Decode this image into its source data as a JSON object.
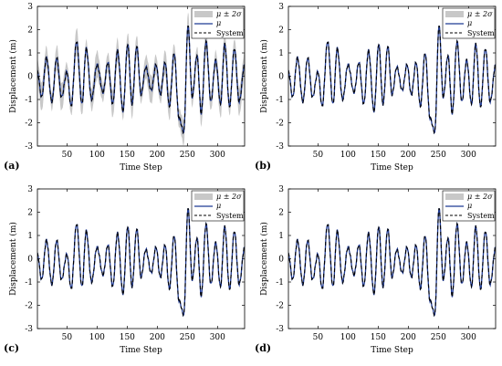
{
  "panels": [
    {
      "label": "(a)",
      "xlabel": "Time Step",
      "ylabel": "Displacement (m)"
    },
    {
      "label": "(b)",
      "xlabel": "Time Step",
      "ylabel": "Displacement (m)"
    },
    {
      "label": "(c)",
      "xlabel": "Time Step",
      "ylabel": "Displacement (m)"
    },
    {
      "label": "(d)",
      "xlabel": "Time Step",
      "ylabel": "Displacement (m)"
    }
  ],
  "legend": {
    "band": "μ ± 2σ",
    "mean": "μ",
    "system": "System"
  },
  "colors": {
    "band": "#c8c8c8",
    "mean": "#1f3a93",
    "system": "#000000"
  },
  "chart_data": [
    {
      "type": "line",
      "xlim": [
        1,
        345
      ],
      "ylim": [
        -3,
        3
      ],
      "x_ticks": [
        50,
        100,
        150,
        200,
        250,
        300
      ],
      "y_ticks": [
        -3,
        -2,
        -1,
        0,
        1,
        2,
        3
      ],
      "grid": false,
      "legend_position": "top-right",
      "band_halfwidth_approx": [
        0.35,
        0.6
      ],
      "keypoints": {
        "x": [
          1,
          8,
          16,
          25,
          33,
          41,
          50,
          57,
          66,
          75,
          82,
          91,
          100,
          110,
          118,
          126,
          134,
          143,
          151,
          158,
          166,
          173,
          181,
          190,
          198,
          205,
          213,
          220,
          228,
          236,
          244,
          251,
          258,
          266,
          273,
          281,
          289,
          297,
          305,
          312,
          320,
          328,
          336,
          345
        ],
        "y": [
          0.2,
          -0.9,
          0.8,
          -1.1,
          0.8,
          -0.9,
          0.2,
          -1.3,
          1.5,
          -1.2,
          1.2,
          -1.0,
          0.5,
          -0.7,
          0.6,
          -1.2,
          1.1,
          -1.5,
          1.4,
          -1.2,
          1.3,
          -0.8,
          0.4,
          -0.6,
          0.5,
          -0.8,
          0.6,
          -1.3,
          1.0,
          -1.8,
          -2.4,
          2.2,
          -0.9,
          0.9,
          -1.6,
          1.5,
          -1.1,
          0.7,
          -1.2,
          1.4,
          -1.3,
          1.2,
          -1.1,
          0.5
        ]
      }
    },
    {
      "type": "line",
      "xlim": [
        1,
        345
      ],
      "ylim": [
        -3,
        3
      ],
      "x_ticks": [
        50,
        100,
        150,
        200,
        250,
        300
      ],
      "y_ticks": [
        -3,
        -2,
        -1,
        0,
        1,
        2,
        3
      ],
      "grid": false,
      "legend_position": "top-right",
      "keypoints": {
        "x": [
          1,
          8,
          16,
          25,
          33,
          41,
          50,
          57,
          66,
          75,
          82,
          91,
          100,
          110,
          118,
          126,
          134,
          143,
          151,
          158,
          166,
          173,
          181,
          190,
          198,
          205,
          213,
          220,
          228,
          236,
          244,
          251,
          258,
          266,
          273,
          281,
          289,
          297,
          305,
          312,
          320,
          328,
          336,
          345
        ],
        "y": [
          0.2,
          -0.9,
          0.8,
          -1.1,
          0.8,
          -0.9,
          0.2,
          -1.3,
          1.5,
          -1.2,
          1.2,
          -1.0,
          0.5,
          -0.7,
          0.6,
          -1.2,
          1.1,
          -1.5,
          1.4,
          -1.2,
          1.3,
          -0.8,
          0.4,
          -0.6,
          0.5,
          -0.8,
          0.6,
          -1.3,
          1.0,
          -1.8,
          -2.4,
          2.2,
          -0.9,
          0.9,
          -1.6,
          1.5,
          -1.1,
          0.7,
          -1.2,
          1.4,
          -1.3,
          1.2,
          -1.1,
          0.5
        ]
      }
    },
    {
      "type": "line",
      "xlim": [
        1,
        345
      ],
      "ylim": [
        -3,
        3
      ],
      "x_ticks": [
        50,
        100,
        150,
        200,
        250,
        300
      ],
      "y_ticks": [
        -3,
        -2,
        -1,
        0,
        1,
        2,
        3
      ],
      "grid": false,
      "legend_position": "top-right",
      "keypoints": {
        "x": [
          1,
          8,
          16,
          25,
          33,
          41,
          50,
          57,
          66,
          75,
          82,
          91,
          100,
          110,
          118,
          126,
          134,
          143,
          151,
          158,
          166,
          173,
          181,
          190,
          198,
          205,
          213,
          220,
          228,
          236,
          244,
          251,
          258,
          266,
          273,
          281,
          289,
          297,
          305,
          312,
          320,
          328,
          336,
          345
        ],
        "y": [
          0.2,
          -0.9,
          0.8,
          -1.1,
          0.8,
          -0.9,
          0.2,
          -1.3,
          1.5,
          -1.2,
          1.2,
          -1.0,
          0.5,
          -0.7,
          0.6,
          -1.2,
          1.1,
          -1.5,
          1.4,
          -1.2,
          1.3,
          -0.8,
          0.4,
          -0.6,
          0.5,
          -0.8,
          0.6,
          -1.3,
          1.0,
          -1.8,
          -2.4,
          2.2,
          -0.9,
          0.9,
          -1.6,
          1.5,
          -1.1,
          0.7,
          -1.2,
          1.4,
          -1.3,
          1.2,
          -1.1,
          0.5
        ]
      }
    },
    {
      "type": "line",
      "xlim": [
        1,
        345
      ],
      "ylim": [
        -3,
        3
      ],
      "x_ticks": [
        50,
        100,
        150,
        200,
        250,
        300
      ],
      "y_ticks": [
        -3,
        -2,
        -1,
        0,
        1,
        2,
        3
      ],
      "grid": false,
      "legend_position": "top-right",
      "keypoints": {
        "x": [
          1,
          8,
          16,
          25,
          33,
          41,
          50,
          57,
          66,
          75,
          82,
          91,
          100,
          110,
          118,
          126,
          134,
          143,
          151,
          158,
          166,
          173,
          181,
          190,
          198,
          205,
          213,
          220,
          228,
          236,
          244,
          251,
          258,
          266,
          273,
          281,
          289,
          297,
          305,
          312,
          320,
          328,
          336,
          345
        ],
        "y": [
          0.2,
          -0.9,
          0.8,
          -1.1,
          0.8,
          -0.9,
          0.2,
          -1.3,
          1.5,
          -1.2,
          1.2,
          -1.0,
          0.5,
          -0.7,
          0.6,
          -1.2,
          1.1,
          -1.5,
          1.4,
          -1.2,
          1.3,
          -0.8,
          0.4,
          -0.6,
          0.5,
          -0.8,
          0.6,
          -1.3,
          1.0,
          -1.8,
          -2.4,
          2.2,
          -0.9,
          0.9,
          -1.6,
          1.5,
          -1.1,
          0.7,
          -1.2,
          1.4,
          -1.3,
          1.2,
          -1.1,
          0.5
        ]
      }
    }
  ]
}
